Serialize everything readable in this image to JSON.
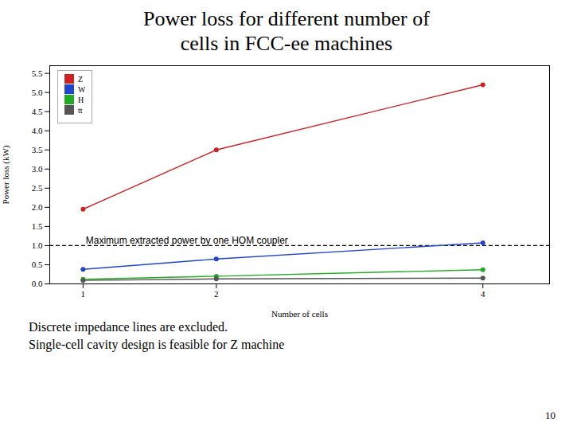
{
  "chart_data": {
    "type": "line",
    "title": "Power loss for different number of\ncells in FCC-ee machines",
    "x_label": "Number of cells",
    "y_label": "Power loss (kW)",
    "x": [
      1,
      2,
      4
    ],
    "series": [
      {
        "name": "Z",
        "color": "#cc2222",
        "values": [
          1.95,
          3.5,
          5.2
        ]
      },
      {
        "name": "W",
        "color": "#2244cc",
        "values": [
          0.38,
          0.65,
          1.07
        ]
      },
      {
        "name": "H",
        "color": "#22aa22",
        "values": [
          0.12,
          0.2,
          0.37
        ]
      },
      {
        "name": "tt",
        "color": "#555555",
        "values": [
          0.09,
          0.13,
          0.15
        ]
      }
    ],
    "marker": "circle",
    "xlim": [
      0.75,
      4.5
    ],
    "xticks": [
      1,
      2,
      4
    ],
    "ylim": [
      0.0,
      5.7
    ],
    "yticks": [
      {
        "value": 0.0,
        "label": "0.0"
      },
      0.5,
      {
        "value": 1.0,
        "label": "1.0"
      },
      1.5,
      {
        "value": 2.0,
        "label": "2.0"
      },
      2.5,
      {
        "value": 3.0,
        "label": "3.0"
      },
      3.5,
      {
        "value": 4.0,
        "label": "4.0"
      },
      4.5,
      {
        "value": 5.0,
        "label": "5.0"
      },
      5.5
    ],
    "grid": false,
    "legend": "upper left",
    "reference_lines": [
      {
        "y": 1.0,
        "color": "#000000",
        "line_style": "dashed"
      }
    ],
    "annotations": [
      {
        "text": "Maximum extracted power by one HOM coupler",
        "x": 1.02,
        "y": 1.06
      }
    ],
    "footnotes": [
      "Discrete impedance lines are excluded.",
      "Single-cell cavity design is feasible for Z machine"
    ],
    "slide_number": "10"
  }
}
